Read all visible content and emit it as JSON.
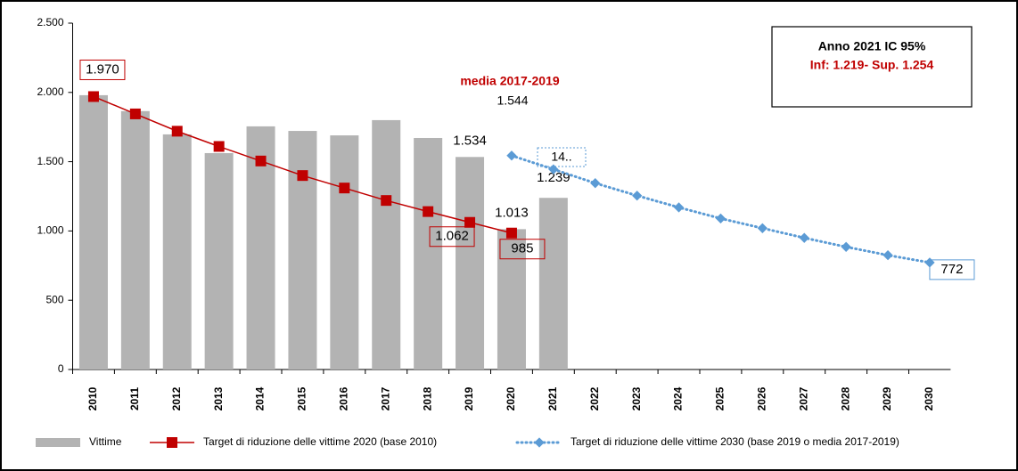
{
  "chart_data": {
    "type": "bar-line",
    "categories": [
      "2010",
      "2011",
      "2012",
      "2013",
      "2014",
      "2015",
      "2016",
      "2017",
      "2018",
      "2019",
      "2020",
      "2021",
      "2022",
      "2023",
      "2024",
      "2025",
      "2026",
      "2027",
      "2028",
      "2029",
      "2030"
    ],
    "ylim": [
      0,
      2500
    ],
    "yticks": [
      0,
      500,
      {
        "value": 1000,
        "label": "1.000"
      },
      {
        "value": 1500,
        "label": "1.500"
      },
      {
        "value": 2000,
        "label": "2.000"
      },
      {
        "value": 2500,
        "label": "2.500"
      }
    ],
    "series": [
      {
        "name": "Vittime",
        "kind": "bar",
        "color": "#b3b3b3",
        "values": [
          1980,
          1865,
          1697,
          1562,
          1755,
          1722,
          1690,
          1800,
          1671,
          1534,
          1013,
          1239,
          null,
          null,
          null,
          null,
          null,
          null,
          null,
          null,
          null
        ],
        "value_labels": [
          null,
          null,
          null,
          null,
          null,
          null,
          null,
          null,
          null,
          "1.534",
          "1.013",
          "1.239",
          null,
          null,
          null,
          null,
          null,
          null,
          null,
          null,
          null
        ]
      },
      {
        "name": "Target di riduzione delle vittime 2020 (base 2010)",
        "kind": "line",
        "color": "#c00000",
        "values": [
          1970,
          1845,
          1720,
          1610,
          1505,
          1400,
          1310,
          1220,
          1140,
          1062,
          985,
          null,
          null,
          null,
          null,
          null,
          null,
          null,
          null,
          null,
          null
        ],
        "value_labels": [
          "1.970",
          null,
          null,
          null,
          null,
          null,
          null,
          null,
          null,
          "1.062",
          "985",
          null,
          null,
          null,
          null,
          null,
          null,
          null,
          null,
          null,
          null
        ]
      },
      {
        "name": "Target di riduzione delle vittime 2030 (base 2019 o media 2017-2019)",
        "kind": "dotted-line",
        "color": "#5b9bd5",
        "values": [
          null,
          null,
          null,
          null,
          null,
          null,
          null,
          null,
          null,
          null,
          1544,
          1445,
          1345,
          1255,
          1170,
          1090,
          1020,
          950,
          885,
          825,
          772
        ],
        "value_labels": [
          null,
          null,
          null,
          null,
          null,
          null,
          null,
          null,
          null,
          null,
          null,
          null,
          null,
          null,
          null,
          null,
          null,
          null,
          null,
          null,
          "772"
        ]
      }
    ],
    "annotations": {
      "media_title": "media 2017-2019",
      "media_value": "1.544",
      "truncated_label": "14..",
      "box_title": "Anno 2021 IC 95%",
      "box_text": "Inf: 1.219- Sup. 1.254"
    }
  }
}
